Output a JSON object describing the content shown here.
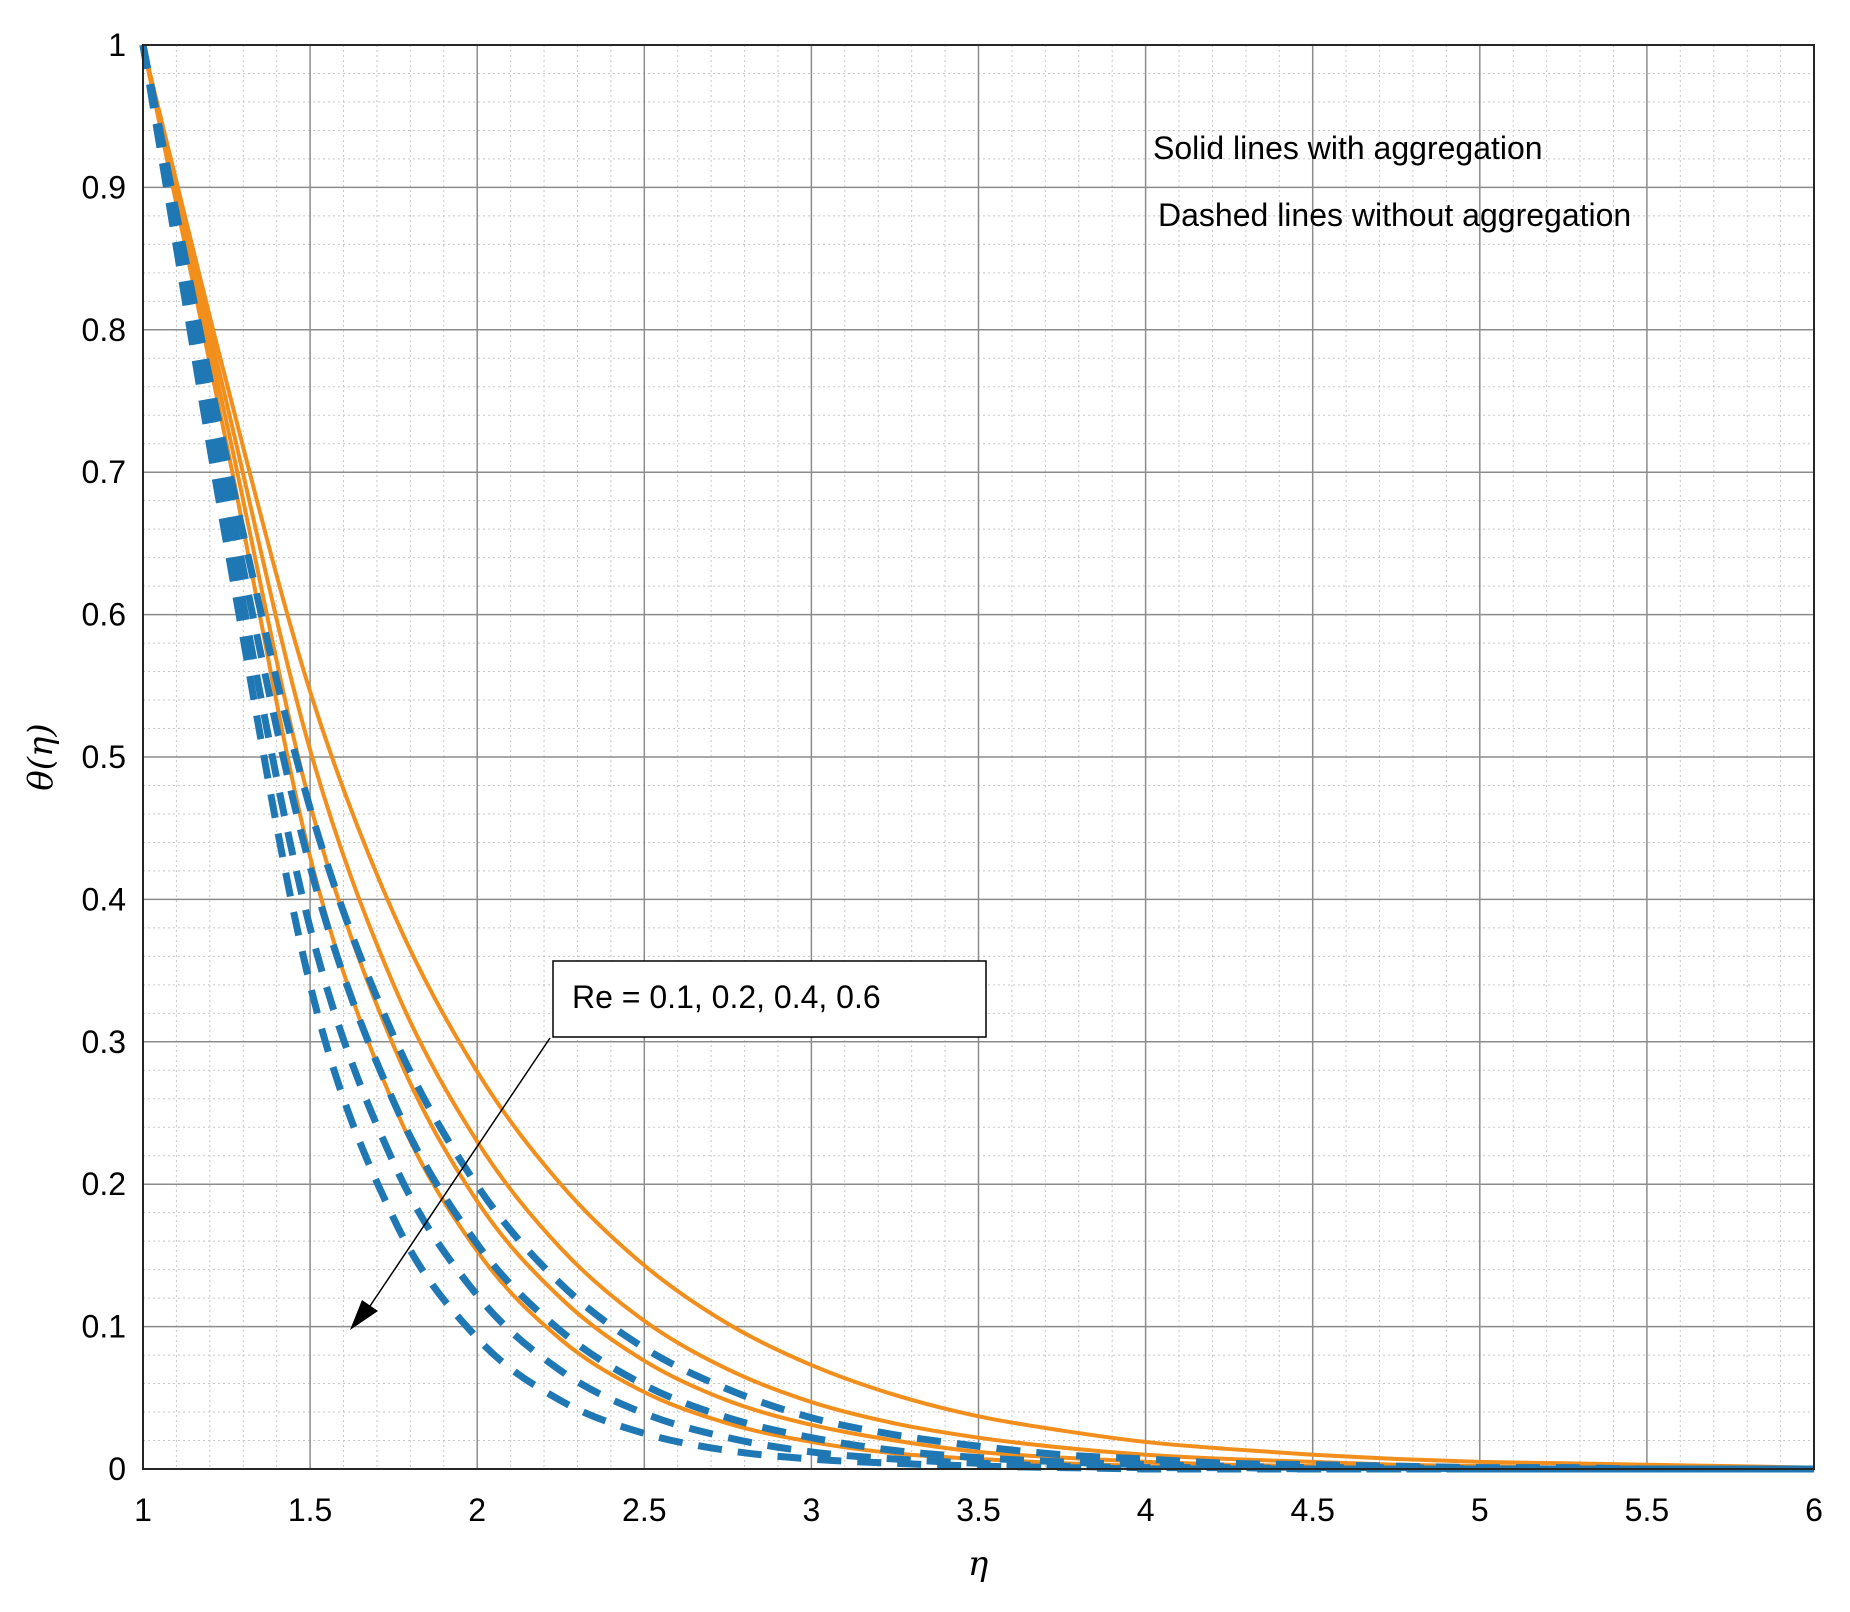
{
  "chart_data": {
    "type": "line",
    "title": "",
    "xlabel": "η",
    "ylabel": "θ(η)",
    "xlim": [
      1,
      6
    ],
    "ylim": [
      0,
      1
    ],
    "xticks": [
      "1",
      "1.5",
      "2",
      "2.5",
      "3",
      "3.5",
      "4",
      "4.5",
      "5",
      "5.5",
      "6"
    ],
    "yticks": [
      "0",
      "0.1",
      "0.2",
      "0.3",
      "0.4",
      "0.5",
      "0.6",
      "0.7",
      "0.8",
      "0.9",
      "1"
    ],
    "grid": true,
    "minor_grid": true,
    "annotations": {
      "solid_note": "Solid lines with aggregation",
      "dashed_note": "Dashed lines without aggregation",
      "re_label": "Re = 0.1, 0.2, 0.4, 0.6"
    },
    "colors": {
      "solid": "#F28E1C",
      "dashed": "#1F77B4"
    },
    "x": [
      1.0,
      1.25,
      1.5,
      1.75,
      2.0,
      2.25,
      2.5,
      2.75,
      3.0,
      3.25,
      3.5,
      3.75,
      4.0,
      4.25,
      4.5,
      4.75,
      5.0,
      5.25,
      5.5,
      5.75,
      6.0
    ],
    "series": [
      {
        "style": "solid",
        "values": [
          1.0,
          0.763,
          0.546,
          0.39,
          0.279,
          0.2,
          0.143,
          0.102,
          0.073,
          0.052,
          0.037,
          0.027,
          0.019,
          0.014,
          0.01,
          0.007,
          0.005,
          0.004,
          0.003,
          0.002,
          0.001
        ]
      },
      {
        "style": "solid",
        "values": [
          1.0,
          0.749,
          0.505,
          0.34,
          0.23,
          0.155,
          0.104,
          0.07,
          0.047,
          0.032,
          0.022,
          0.015,
          0.01,
          0.007,
          0.005,
          0.003,
          0.002,
          0.001,
          0.001,
          0.0,
          0.0
        ]
      },
      {
        "style": "solid",
        "values": [
          1.0,
          0.735,
          0.467,
          0.297,
          0.188,
          0.12,
          0.076,
          0.048,
          0.031,
          0.02,
          0.012,
          0.008,
          0.005,
          0.003,
          0.002,
          0.001,
          0.001,
          0.0,
          0.0,
          0.0,
          0.0
        ]
      },
      {
        "style": "solid",
        "values": [
          1.0,
          0.72,
          0.43,
          0.256,
          0.153,
          0.091,
          0.054,
          0.032,
          0.019,
          0.011,
          0.007,
          0.004,
          0.002,
          0.001,
          0.001,
          0.0,
          0.0,
          0.0,
          0.0,
          0.0,
          0.0
        ]
      },
      {
        "style": "dashed",
        "values": [
          1.0,
          0.71,
          0.464,
          0.304,
          0.199,
          0.13,
          0.085,
          0.056,
          0.036,
          0.024,
          0.016,
          0.01,
          0.007,
          0.004,
          0.003,
          0.002,
          0.001,
          0.001,
          0.0,
          0.0,
          0.0
        ]
      },
      {
        "style": "dashed",
        "values": [
          1.0,
          0.69,
          0.423,
          0.258,
          0.158,
          0.097,
          0.059,
          0.036,
          0.022,
          0.013,
          0.008,
          0.005,
          0.003,
          0.002,
          0.001,
          0.001,
          0.0,
          0.0,
          0.0,
          0.0,
          0.0
        ]
      },
      {
        "style": "dashed",
        "values": [
          1.0,
          0.67,
          0.38,
          0.215,
          0.122,
          0.069,
          0.039,
          0.022,
          0.012,
          0.007,
          0.004,
          0.002,
          0.001,
          0.001,
          0.0,
          0.0,
          0.0,
          0.0,
          0.0,
          0.0,
          0.0
        ]
      },
      {
        "style": "dashed",
        "values": [
          1.0,
          0.65,
          0.34,
          0.176,
          0.092,
          0.048,
          0.025,
          0.013,
          0.007,
          0.004,
          0.002,
          0.001,
          0.0,
          0.0,
          0.0,
          0.0,
          0.0,
          0.0,
          0.0,
          0.0,
          0.0
        ]
      }
    ]
  }
}
